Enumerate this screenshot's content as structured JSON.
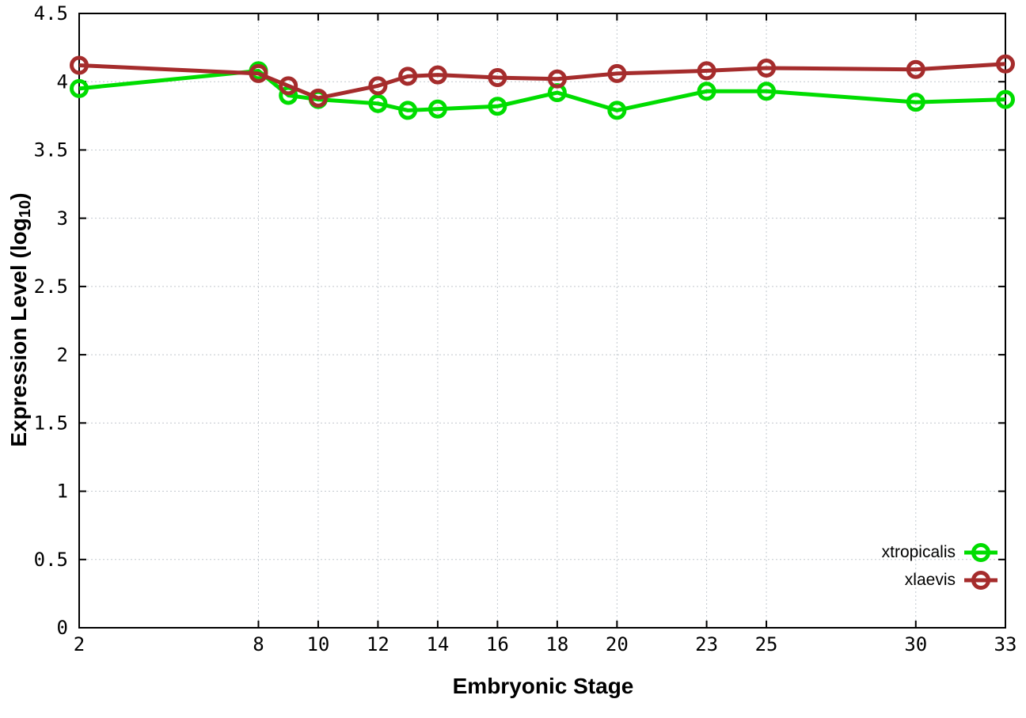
{
  "page": {
    "background_color": "#ffffff",
    "axis_color": "#000000",
    "grid_color": "#c2c8ce",
    "tick_label_color": "#000000"
  },
  "chart_data": {
    "type": "line",
    "title": "",
    "xlabel": "Embryonic Stage",
    "ylabel": "Expression Level (log10)",
    "ylabel_main": "Expression Level (log",
    "ylabel_subscript": "10",
    "ylabel_suffix": ")",
    "xlim": [
      2,
      33
    ],
    "ylim": [
      0,
      4.5
    ],
    "x_ticks": [
      2,
      8,
      10,
      12,
      14,
      16,
      18,
      20,
      23,
      25,
      30,
      33
    ],
    "x_tick_labels": [
      "2",
      "8",
      "10",
      "12",
      "14",
      "16",
      "18",
      "20",
      "23",
      "25",
      "30",
      "33"
    ],
    "y_ticks": [
      0,
      0.5,
      1,
      1.5,
      2,
      2.5,
      3,
      3.5,
      4,
      4.5
    ],
    "y_tick_labels": [
      "0",
      "0.5",
      "1",
      "1.5",
      "2",
      "2.5",
      "3",
      "3.5",
      "4",
      "4.5"
    ],
    "grid": true,
    "marker": "open-circle",
    "legend_position": "inside-bottom-right",
    "x": [
      2,
      8,
      9,
      10,
      12,
      13,
      14,
      16,
      18,
      20,
      23,
      25,
      30,
      33
    ],
    "series": [
      {
        "name": "xtropicalis",
        "color": "#00dd00",
        "values": [
          3.95,
          4.08,
          3.9,
          3.87,
          3.84,
          3.79,
          3.8,
          3.82,
          3.92,
          3.79,
          3.93,
          3.93,
          3.85,
          3.87
        ]
      },
      {
        "name": "xlaevis",
        "color": "#a52c2c",
        "values": [
          4.12,
          4.06,
          3.97,
          3.88,
          3.97,
          4.04,
          4.05,
          4.03,
          4.02,
          4.06,
          4.08,
          4.1,
          4.09,
          4.13
        ]
      }
    ]
  }
}
